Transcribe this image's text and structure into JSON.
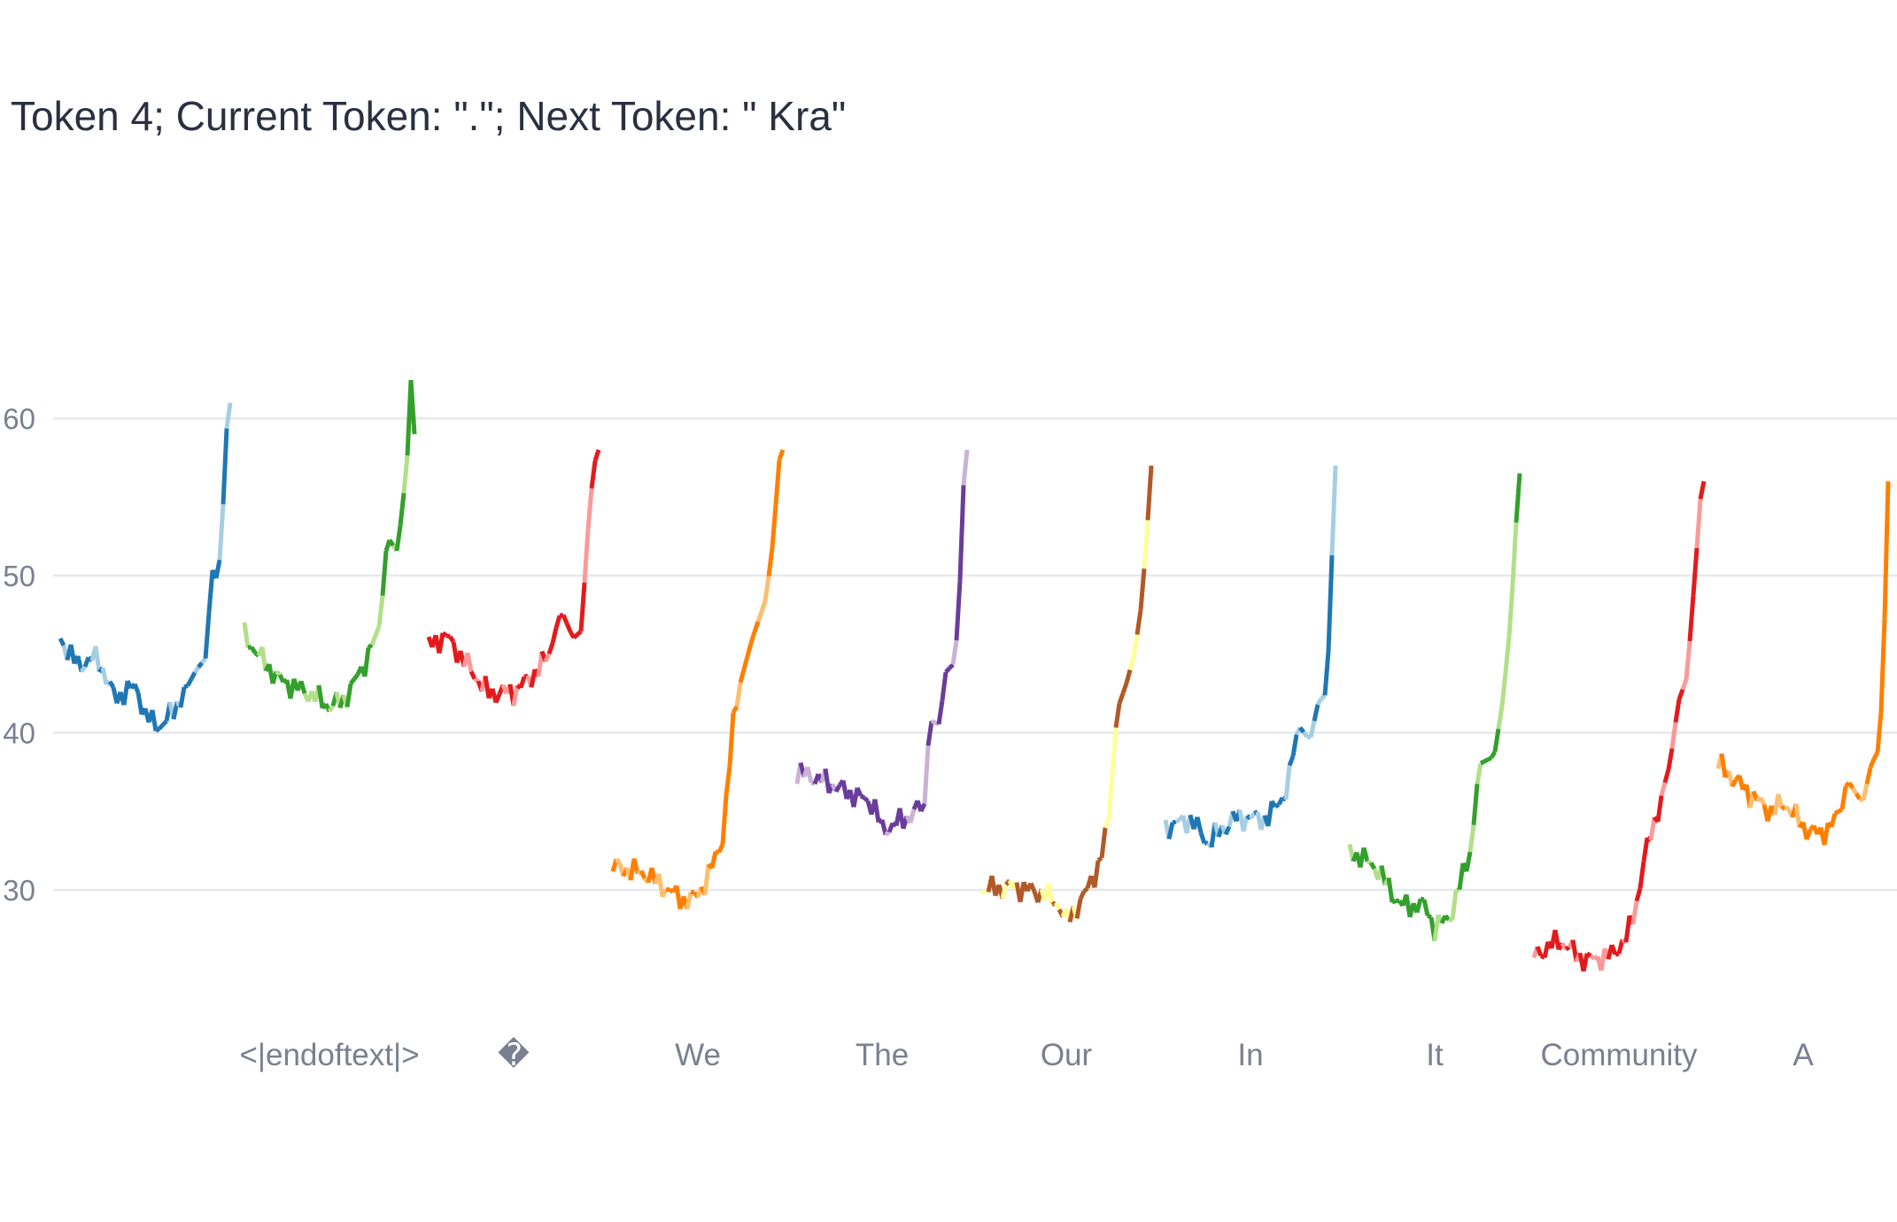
{
  "chart_data": {
    "type": "line",
    "title": "Token 4; Current Token: \".\"; Next Token: \" Kra\"",
    "xlabel": "",
    "ylabel": "",
    "ylim": [
      21,
      70
    ],
    "yticks": [
      30,
      40,
      50,
      60
    ],
    "grid": true,
    "legend": "none",
    "categories": [
      "",
      "<|endoftext|>",
      "�",
      "We",
      "The",
      "Our",
      "In",
      "It",
      "Community",
      "A"
    ],
    "series": [
      {
        "color": "#1f77b4",
        "light": "#a6cee3",
        "keys": [
          [
            0,
            46.0
          ],
          [
            0.1,
            44.3
          ],
          [
            0.22,
            44.8
          ],
          [
            0.32,
            42.2
          ],
          [
            0.45,
            43.0
          ],
          [
            0.5,
            41.0
          ],
          [
            0.6,
            40.4
          ],
          [
            0.7,
            42.0
          ],
          [
            0.8,
            44.0
          ],
          [
            0.86,
            44.8
          ],
          [
            0.89,
            50.5
          ],
          [
            0.93,
            49.5
          ],
          [
            0.95,
            53.5
          ],
          [
            0.97,
            56.0
          ],
          [
            0.985,
            61.5
          ],
          [
            0.99,
            67.5
          ],
          [
            1,
            61.0
          ]
        ]
      },
      {
        "color": "#33a02c",
        "light": "#b2df8a",
        "keys": [
          [
            0,
            46.2
          ],
          [
            0.08,
            45.0
          ],
          [
            0.2,
            43.4
          ],
          [
            0.4,
            42.4
          ],
          [
            0.5,
            41.7
          ],
          [
            0.58,
            42.0
          ],
          [
            0.7,
            44.2
          ],
          [
            0.8,
            47.0
          ],
          [
            0.84,
            52.5
          ],
          [
            0.9,
            51.5
          ],
          [
            0.94,
            55.5
          ],
          [
            0.97,
            59.0
          ],
          [
            0.99,
            66.5
          ],
          [
            1,
            59.0
          ]
        ]
      },
      {
        "color": "#e31a1c",
        "light": "#fb9a99",
        "keys": [
          [
            0,
            45.5
          ],
          [
            0.1,
            46.2
          ],
          [
            0.25,
            44.0
          ],
          [
            0.35,
            42.5
          ],
          [
            0.5,
            42.6
          ],
          [
            0.6,
            43.5
          ],
          [
            0.7,
            44.8
          ],
          [
            0.78,
            47.8
          ],
          [
            0.85,
            46.0
          ],
          [
            0.9,
            46.5
          ],
          [
            0.93,
            52.0
          ],
          [
            0.97,
            57.0
          ],
          [
            1,
            58.0
          ]
        ]
      },
      {
        "color": "#ff7f00",
        "light": "#fdbf6f",
        "keys": [
          [
            0,
            31.5
          ],
          [
            0.2,
            31.0
          ],
          [
            0.35,
            29.8
          ],
          [
            0.45,
            29.2
          ],
          [
            0.55,
            30.5
          ],
          [
            0.65,
            33.5
          ],
          [
            0.72,
            42.0
          ],
          [
            0.82,
            46.0
          ],
          [
            0.9,
            48.5
          ],
          [
            0.94,
            52.0
          ],
          [
            0.98,
            57.5
          ],
          [
            1,
            58.0
          ]
        ]
      },
      {
        "color": "#6a3d9a",
        "light": "#cab2d6",
        "keys": [
          [
            0,
            37.5
          ],
          [
            0.15,
            37.0
          ],
          [
            0.3,
            36.2
          ],
          [
            0.45,
            35.5
          ],
          [
            0.5,
            33.8
          ],
          [
            0.65,
            34.6
          ],
          [
            0.75,
            35.5
          ],
          [
            0.78,
            40.8
          ],
          [
            0.84,
            40.5
          ],
          [
            0.87,
            43.8
          ],
          [
            0.93,
            44.5
          ],
          [
            0.96,
            50.0
          ],
          [
            0.98,
            56.0
          ],
          [
            1,
            58.0
          ]
        ]
      },
      {
        "color": "#b15928",
        "light": "#ffff99",
        "keys": [
          [
            0,
            30.0
          ],
          [
            0.2,
            30.2
          ],
          [
            0.35,
            29.8
          ],
          [
            0.45,
            29.2
          ],
          [
            0.5,
            28.0
          ],
          [
            0.6,
            29.5
          ],
          [
            0.7,
            31.8
          ],
          [
            0.75,
            34.5
          ],
          [
            0.8,
            41.5
          ],
          [
            0.85,
            43.0
          ],
          [
            0.9,
            45.0
          ],
          [
            0.94,
            48.0
          ],
          [
            0.97,
            52.0
          ],
          [
            1,
            57.0
          ]
        ]
      },
      {
        "color": "#1f77b4",
        "light": "#a6cee3",
        "keys": [
          [
            0,
            34.0
          ],
          [
            0.15,
            34.5
          ],
          [
            0.25,
            33.0
          ],
          [
            0.4,
            34.5
          ],
          [
            0.5,
            34.6
          ],
          [
            0.6,
            34.5
          ],
          [
            0.72,
            36.5
          ],
          [
            0.78,
            40.5
          ],
          [
            0.85,
            39.5
          ],
          [
            0.9,
            42.0
          ],
          [
            0.95,
            42.5
          ],
          [
            0.97,
            49.0
          ],
          [
            0.99,
            54.0
          ],
          [
            1,
            57.0
          ]
        ]
      },
      {
        "color": "#33a02c",
        "light": "#b2df8a",
        "keys": [
          [
            0,
            32.5
          ],
          [
            0.15,
            31.5
          ],
          [
            0.3,
            29.0
          ],
          [
            0.45,
            29.0
          ],
          [
            0.5,
            27.5
          ],
          [
            0.6,
            28.5
          ],
          [
            0.72,
            33.0
          ],
          [
            0.76,
            38.0
          ],
          [
            0.85,
            38.5
          ],
          [
            0.9,
            42.0
          ],
          [
            0.95,
            47.5
          ],
          [
            0.97,
            52.0
          ],
          [
            1,
            56.5
          ]
        ]
      },
      {
        "color": "#e31a1c",
        "light": "#fb9a99",
        "keys": [
          [
            0,
            25.8
          ],
          [
            0.15,
            26.8
          ],
          [
            0.3,
            25.5
          ],
          [
            0.45,
            25.8
          ],
          [
            0.55,
            27.0
          ],
          [
            0.6,
            29.0
          ],
          [
            0.65,
            32.0
          ],
          [
            0.75,
            36.0
          ],
          [
            0.8,
            38.0
          ],
          [
            0.85,
            42.0
          ],
          [
            0.9,
            43.5
          ],
          [
            0.95,
            50.5
          ],
          [
            0.98,
            55.0
          ],
          [
            1,
            56.0
          ]
        ]
      },
      {
        "color": "#ff7f00",
        "light": "#fdbf6f",
        "keys": [
          [
            0,
            38.0
          ],
          [
            0.15,
            36.5
          ],
          [
            0.3,
            35.0
          ],
          [
            0.4,
            35.5
          ],
          [
            0.5,
            34.0
          ],
          [
            0.6,
            33.5
          ],
          [
            0.7,
            34.5
          ],
          [
            0.76,
            37.0
          ],
          [
            0.85,
            35.5
          ],
          [
            0.9,
            38.0
          ],
          [
            0.95,
            39.0
          ],
          [
            0.97,
            44.5
          ],
          [
            0.99,
            50.5
          ],
          [
            1,
            56.0
          ]
        ]
      }
    ]
  }
}
